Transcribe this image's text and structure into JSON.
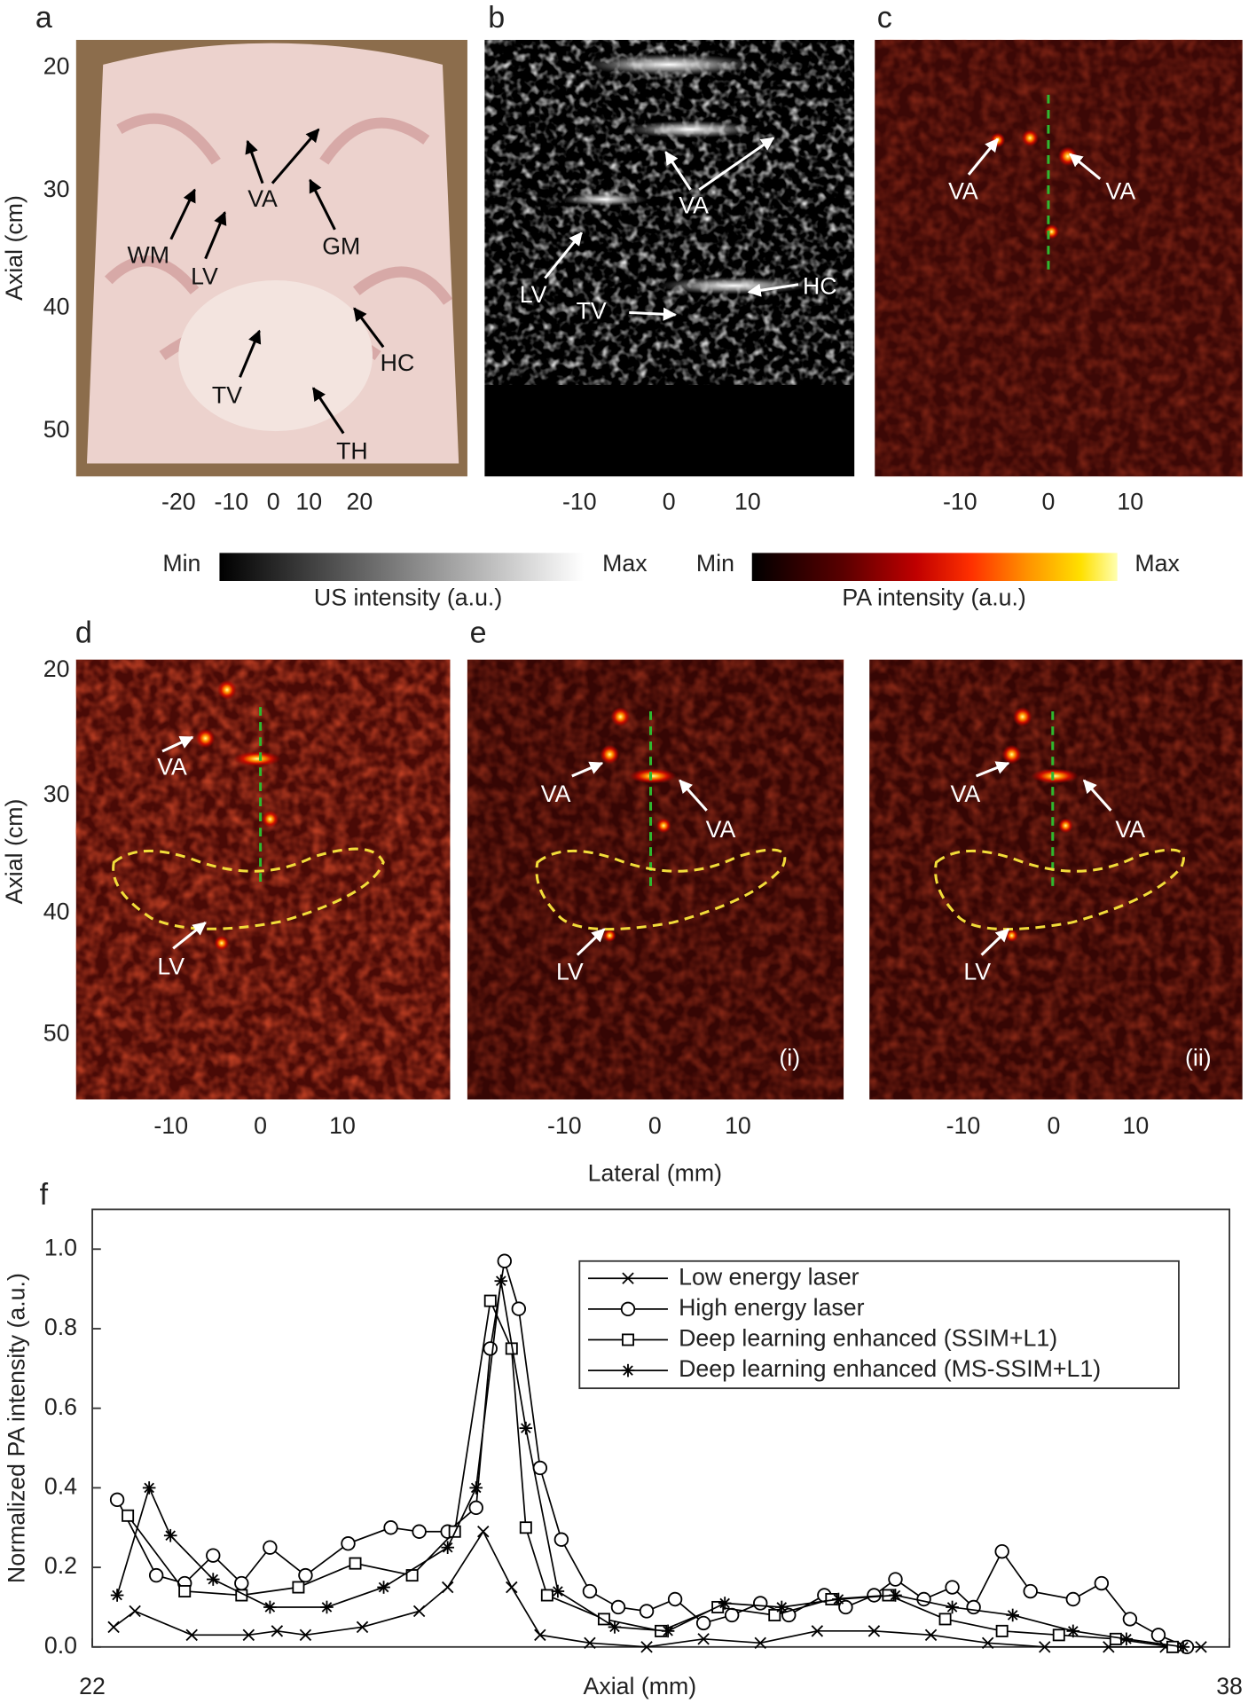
{
  "panels": {
    "a": {
      "label": "a",
      "y_axis_title": "Axial (cm)",
      "y_ticks": [
        "20",
        "30",
        "40",
        "50"
      ],
      "x_ticks": [
        "-20",
        "-10",
        "0",
        "10",
        "20"
      ],
      "annotations": [
        "WM",
        "LV",
        "VA",
        "GM",
        "HC",
        "TV",
        "TH"
      ]
    },
    "b": {
      "label": "b",
      "x_ticks": [
        "-10",
        "0",
        "10"
      ],
      "annotations": [
        "VA",
        "LV",
        "TV",
        "HC"
      ]
    },
    "c": {
      "label": "c",
      "x_ticks": [
        "-10",
        "0",
        "10"
      ],
      "annotations": [
        "VA",
        "VA"
      ]
    },
    "colorbars": [
      {
        "min": "Min",
        "max": "Max",
        "title": "US intensity (a.u.)"
      },
      {
        "min": "Min",
        "max": "Max",
        "title": "PA intensity (a.u.)"
      }
    ],
    "d": {
      "label": "d",
      "y_axis_title": "Axial (cm)",
      "y_ticks": [
        "20",
        "30",
        "40",
        "50"
      ],
      "x_ticks": [
        "-10",
        "0",
        "10"
      ],
      "annotations": [
        "VA",
        "LV"
      ]
    },
    "e_i": {
      "label": "e",
      "tag": "(i)",
      "x_ticks": [
        "-10",
        "0",
        "10"
      ],
      "annotations": [
        "VA",
        "VA",
        "LV"
      ]
    },
    "e_ii": {
      "tag": "(ii)",
      "x_ticks": [
        "-10",
        "0",
        "10"
      ],
      "annotations": [
        "VA",
        "VA",
        "LV"
      ]
    },
    "lateral_label": "Lateral (mm)",
    "f": {
      "label": "f"
    }
  },
  "chart_data": {
    "type": "line",
    "xlabel": "Axial (mm)",
    "ylabel": "Normalized PA intensity (a.u.)",
    "xlim": [
      22,
      38
    ],
    "ylim": [
      0,
      1.1
    ],
    "xticks": [
      22,
      38
    ],
    "yticks": [
      {
        "value": 0,
        "label": "0.0"
      },
      0.2,
      0.4,
      0.6,
      0.8,
      {
        "value": 1,
        "label": "1.0"
      }
    ],
    "grid": false,
    "legend": "upper right",
    "series": [
      {
        "name": "Low energy laser",
        "color": "#000000",
        "marker": "x",
        "x": [
          22.3,
          22.6,
          23.4,
          24.2,
          24.6,
          25.0,
          25.8,
          26.6,
          27.0,
          27.5,
          27.9,
          28.3,
          29.0,
          29.8,
          30.6,
          31.4,
          32.2,
          33.0,
          33.8,
          34.6,
          35.4,
          36.3,
          37.1,
          37.6
        ],
        "values": [
          0.05,
          0.09,
          0.03,
          0.03,
          0.04,
          0.03,
          0.05,
          0.09,
          0.15,
          0.29,
          0.15,
          0.03,
          0.01,
          0.0,
          0.02,
          0.01,
          0.04,
          0.04,
          0.03,
          0.01,
          0.0,
          0.0,
          0.0,
          0.0
        ]
      },
      {
        "name": "High energy laser",
        "color": "#000000",
        "marker": "o",
        "x": [
          22.35,
          22.9,
          23.3,
          23.7,
          24.1,
          24.5,
          25.0,
          25.6,
          26.2,
          26.6,
          27.0,
          27.4,
          27.6,
          27.8,
          28.0,
          28.3,
          28.6,
          29.0,
          29.4,
          29.8,
          30.2,
          30.6,
          31.0,
          31.4,
          31.8,
          32.3,
          32.6,
          33.0,
          33.3,
          33.7,
          34.1,
          34.4,
          34.8,
          35.2,
          35.8,
          36.2,
          36.6,
          37.0,
          37.4
        ],
        "values": [
          0.37,
          0.18,
          0.16,
          0.23,
          0.16,
          0.25,
          0.18,
          0.26,
          0.3,
          0.29,
          0.29,
          0.35,
          0.75,
          0.97,
          0.85,
          0.45,
          0.27,
          0.14,
          0.1,
          0.09,
          0.12,
          0.06,
          0.08,
          0.11,
          0.08,
          0.13,
          0.1,
          0.13,
          0.17,
          0.12,
          0.15,
          0.1,
          0.24,
          0.14,
          0.12,
          0.16,
          0.07,
          0.03,
          0.0
        ]
      },
      {
        "name": "Deep learning enhanced (SSIM+L1)",
        "color": "#000000",
        "marker": "s",
        "x": [
          22.5,
          23.3,
          24.1,
          24.9,
          25.7,
          26.5,
          27.1,
          27.6,
          27.9,
          28.1,
          28.4,
          29.2,
          30.0,
          30.8,
          31.6,
          32.4,
          33.2,
          34.0,
          34.8,
          35.6,
          36.4,
          37.2
        ],
        "values": [
          0.33,
          0.14,
          0.13,
          0.15,
          0.21,
          0.18,
          0.29,
          0.87,
          0.75,
          0.3,
          0.13,
          0.07,
          0.04,
          0.1,
          0.08,
          0.12,
          0.13,
          0.07,
          0.04,
          0.03,
          0.02,
          0.0
        ]
      },
      {
        "name": "Deep learning enhanced (MS-SSIM+L1)",
        "color": "#000000",
        "marker": "*",
        "x": [
          22.35,
          22.8,
          23.1,
          23.7,
          24.5,
          25.3,
          26.1,
          27.0,
          27.4,
          27.75,
          28.1,
          28.55,
          29.35,
          30.1,
          30.9,
          31.7,
          32.5,
          33.3,
          34.1,
          34.95,
          35.8,
          36.55,
          37.35
        ],
        "values": [
          0.13,
          0.4,
          0.28,
          0.17,
          0.1,
          0.1,
          0.15,
          0.25,
          0.4,
          0.92,
          0.55,
          0.14,
          0.05,
          0.04,
          0.11,
          0.1,
          0.12,
          0.13,
          0.1,
          0.08,
          0.04,
          0.02,
          0.0
        ]
      }
    ]
  }
}
